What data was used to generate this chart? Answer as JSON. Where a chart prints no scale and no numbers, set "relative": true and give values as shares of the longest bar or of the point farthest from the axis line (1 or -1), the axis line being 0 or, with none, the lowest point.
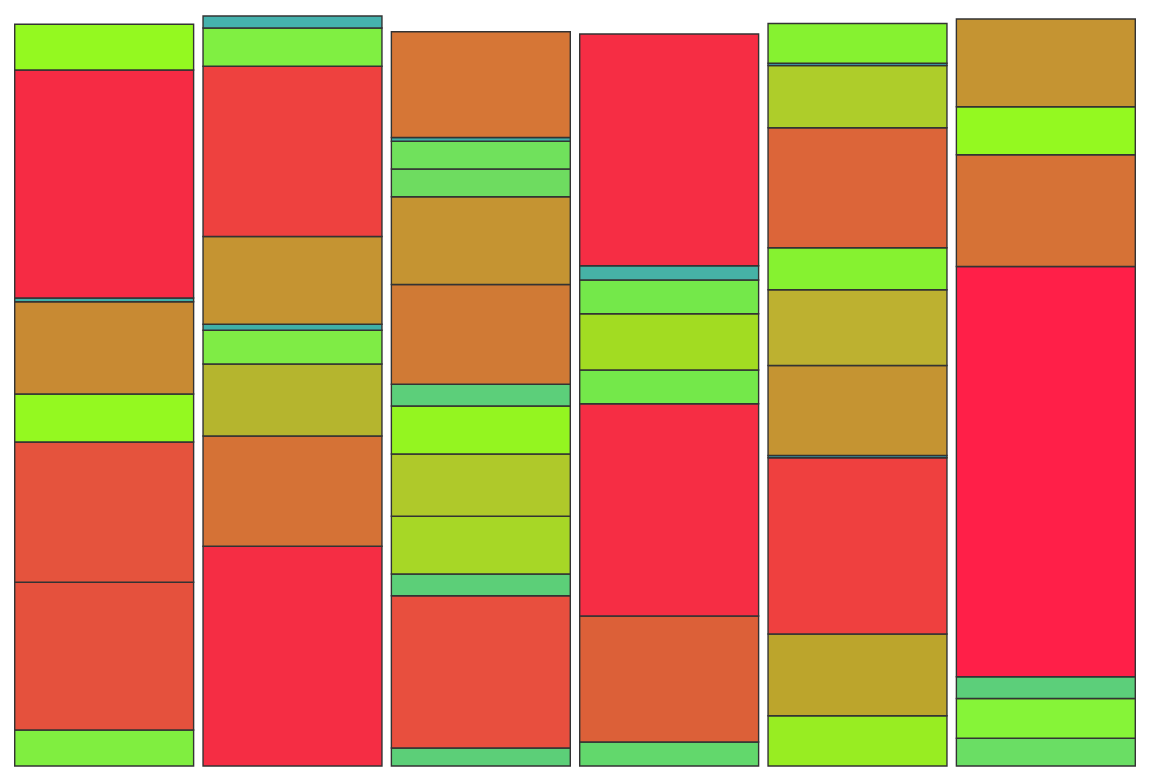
{
  "chart_data": {
    "type": "bar",
    "stacked": true,
    "relative": true,
    "categories": [
      null,
      null,
      null,
      null,
      null,
      null
    ],
    "series": [
      {
        "values": [
          0.048,
          0.293,
          0.024,
          0.032,
          0.067,
          0.037
        ],
        "colors": [
          "#80ee40",
          "#f52d44",
          "#5ccf78",
          "#62d86c",
          "#98ed22",
          "#6ade64"
        ]
      },
      {
        "values": [
          0.197,
          0.147,
          0.203,
          0.168,
          0.109,
          0.053
        ],
        "colors": [
          "#e5513d",
          "#d57236",
          "#e84f3e",
          "#dc6038",
          "#bca52c",
          "#86f438"
        ]
      },
      {
        "values": [
          0.187,
          0.096,
          0.029,
          0.283,
          0.235,
          0.029
        ],
        "colors": [
          "#e5533d",
          "#b5b52e",
          "#5ccf78",
          "#f62d44",
          "#ef403f",
          "#5ccf7a"
        ]
      },
      {
        "values": [
          0.064,
          0.045,
          0.077,
          0.045,
          0.003,
          0.547
        ],
        "colors": [
          "#94f920",
          "#7fec45",
          "#a7d726",
          "#74e84a",
          "#3fb0c0",
          "#ff1f48"
        ]
      },
      {
        "values": [
          0.123,
          0.008,
          0.083,
          0.075,
          0.12,
          0.149
        ],
        "colors": [
          "#c88a33",
          "#40b0a8",
          "#afc92a",
          "#a2dc22",
          "#c59432",
          "#d67236"
        ]
      },
      {
        "values": [
          0.005,
          0.117,
          0.064,
          0.045,
          0.101,
          0.064
        ],
        "colors": [
          "#3fb0a8",
          "#c59432",
          "#94f520",
          "#74e84a",
          "#bdb130",
          "#94f920"
        ]
      },
      {
        "values": [
          0.304,
          0.227,
          0.029,
          0.019,
          0.056,
          0.117
        ],
        "colors": [
          "#f62b44",
          "#ee413f",
          "#5ccf7a",
          "#46b2a6",
          "#86f230",
          "#c59432"
        ]
      },
      {
        "values": [
          0.061,
          0.051,
          0.133,
          0.309,
          0.16,
          null
        ],
        "colors": [
          "#94f920",
          "#80ef42",
          "#d07a35",
          "#f62d44",
          "#dc6539",
          null
        ]
      },
      {
        "values": [
          null,
          0.016,
          0.117,
          null,
          0.083,
          null
        ],
        "colors": [
          null,
          "#45b2ad",
          "#c59432",
          null,
          "#aecd2a",
          null
        ]
      },
      {
        "values": [
          null,
          null,
          0.037,
          null,
          0.003,
          null
        ],
        "colors": [
          null,
          null,
          "#6edc60",
          null,
          "#3fb0c0",
          null
        ]
      },
      {
        "values": [
          null,
          null,
          0.037,
          null,
          0.053,
          null
        ],
        "colors": [
          null,
          null,
          "#70e15c",
          null,
          "#86f230",
          null
        ]
      },
      {
        "values": [
          null,
          null,
          0.005,
          null,
          null,
          null
        ],
        "colors": [
          null,
          null,
          "#3fb0a8",
          null,
          null,
          null
        ]
      },
      {
        "values": [
          null,
          null,
          0.141,
          null,
          null,
          null
        ],
        "colors": [
          null,
          null,
          "#d67636",
          null,
          null,
          null
        ]
      }
    ]
  }
}
